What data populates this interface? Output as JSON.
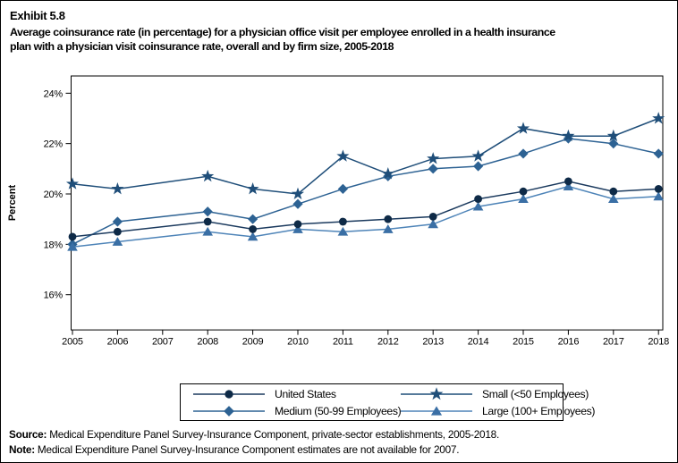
{
  "exhibit": {
    "number": "Exhibit 5.8",
    "title_line1": "Average coinsurance rate (in percentage) for a physician office visit per employee enrolled in a health insurance",
    "title_line2": "plan with a physician visit coinsurance rate, overall and by firm size, 2005-2018"
  },
  "chart_data": {
    "type": "line",
    "ylabel": "Percent",
    "x_axis_years": [
      2005,
      2006,
      2007,
      2008,
      2009,
      2010,
      2011,
      2012,
      2013,
      2014,
      2015,
      2016,
      2017,
      2018
    ],
    "missing_years": [
      2007
    ],
    "x": [
      2005,
      2006,
      2008,
      2009,
      2010,
      2011,
      2012,
      2013,
      2014,
      2015,
      2016,
      2017,
      2018
    ],
    "y_ticks": [
      "16%",
      "18%",
      "20%",
      "22%",
      "24%"
    ],
    "y_tick_values": [
      16,
      18,
      20,
      22,
      24
    ],
    "ylim": [
      14.6,
      24.7
    ],
    "grid": false,
    "legend_position": "bottom-center",
    "series": [
      {
        "name": "United States",
        "marker": "circle",
        "line_color": "#1B3A5E",
        "marker_color": "#0E2A47",
        "values": [
          18.3,
          18.5,
          18.9,
          18.6,
          18.8,
          18.9,
          19.0,
          19.1,
          19.8,
          20.1,
          20.5,
          20.1,
          20.2
        ]
      },
      {
        "name": "Small (<50 Employees)",
        "marker": "star",
        "line_color": "#1F4E79",
        "marker_color": "#1F4E79",
        "values": [
          20.4,
          20.2,
          20.7,
          20.2,
          20.0,
          21.5,
          20.8,
          21.4,
          21.5,
          22.6,
          22.3,
          22.3,
          23.0
        ]
      },
      {
        "name": "Medium (50-99 Employees)",
        "marker": "diamond",
        "line_color": "#2D6293",
        "marker_color": "#2D6293",
        "values": [
          18.0,
          18.9,
          19.3,
          19.0,
          19.6,
          20.2,
          20.7,
          21.0,
          21.1,
          21.6,
          22.2,
          22.0,
          21.6
        ]
      },
      {
        "name": "Large (100+ Employees)",
        "marker": "triangle",
        "line_color": "#4E84B8",
        "marker_color": "#3A6FA5",
        "values": [
          17.9,
          18.1,
          18.5,
          18.3,
          18.6,
          18.5,
          18.6,
          18.8,
          19.5,
          19.8,
          20.3,
          19.8,
          19.9
        ]
      }
    ]
  },
  "footer": {
    "source_label": "Source:",
    "source_text": " Medical Expenditure Panel Survey-Insurance Component, private-sector establishments, 2005-2018.",
    "note_label": "Note:",
    "note_text": " Medical Expenditure Panel Survey-Insurance Component estimates are not available for 2007."
  }
}
